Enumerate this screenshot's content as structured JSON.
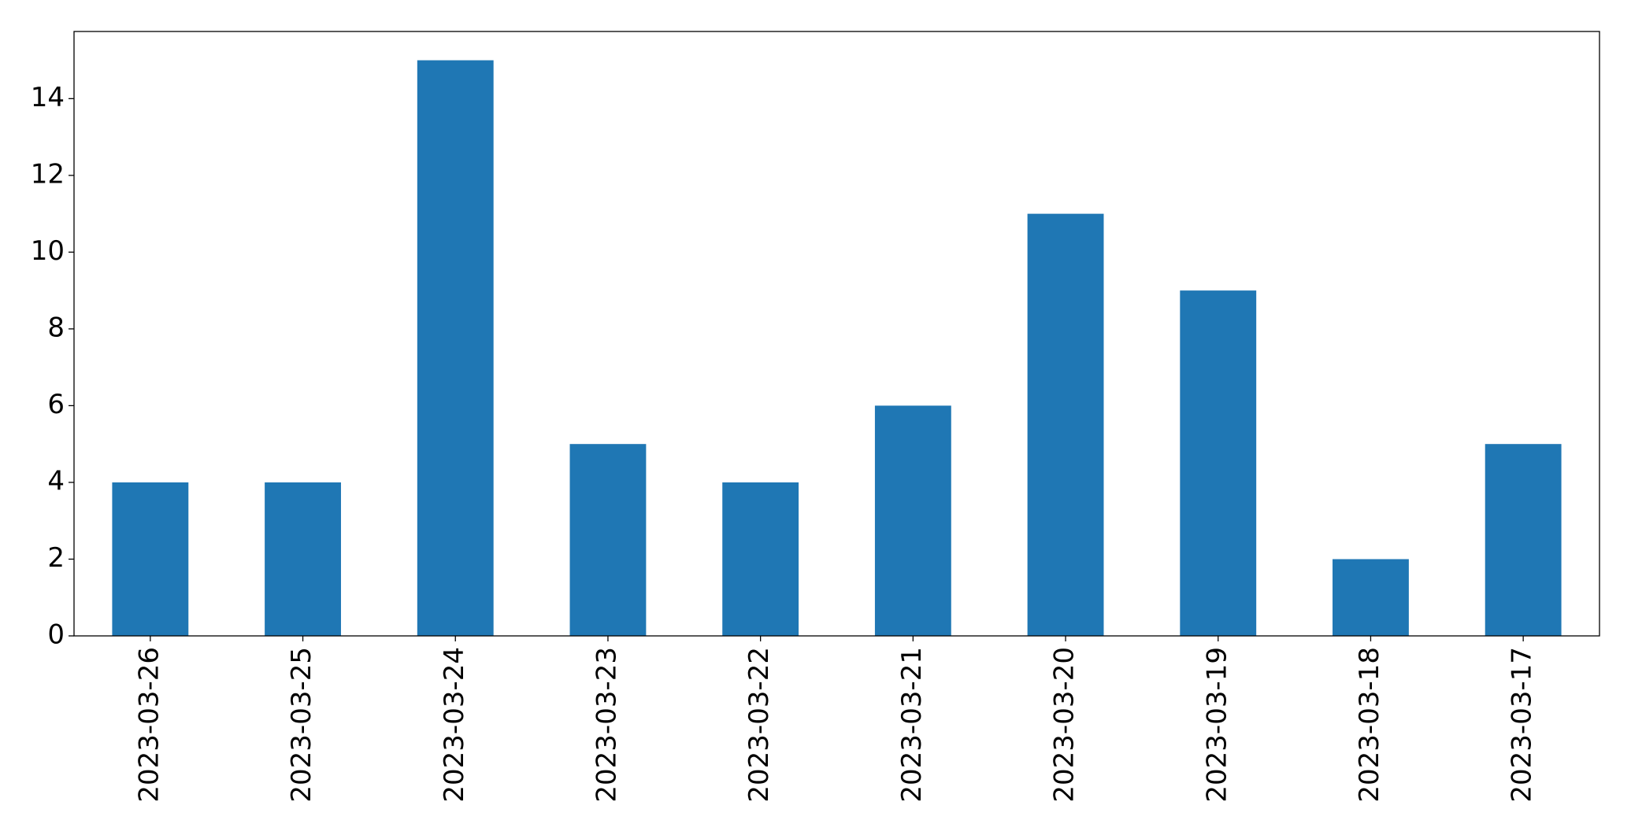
{
  "chart_data": {
    "type": "bar",
    "categories": [
      "2023-03-26",
      "2023-03-25",
      "2023-03-24",
      "2023-03-23",
      "2023-03-22",
      "2023-03-21",
      "2023-03-20",
      "2023-03-19",
      "2023-03-18",
      "2023-03-17"
    ],
    "values": [
      4,
      4,
      15,
      5,
      4,
      6,
      11,
      9,
      2,
      5
    ],
    "color": "#1f77b4",
    "ylim": [
      0,
      15.75
    ],
    "yticks": [
      0,
      2,
      4,
      6,
      8,
      10,
      12,
      14
    ],
    "grid": false
  }
}
